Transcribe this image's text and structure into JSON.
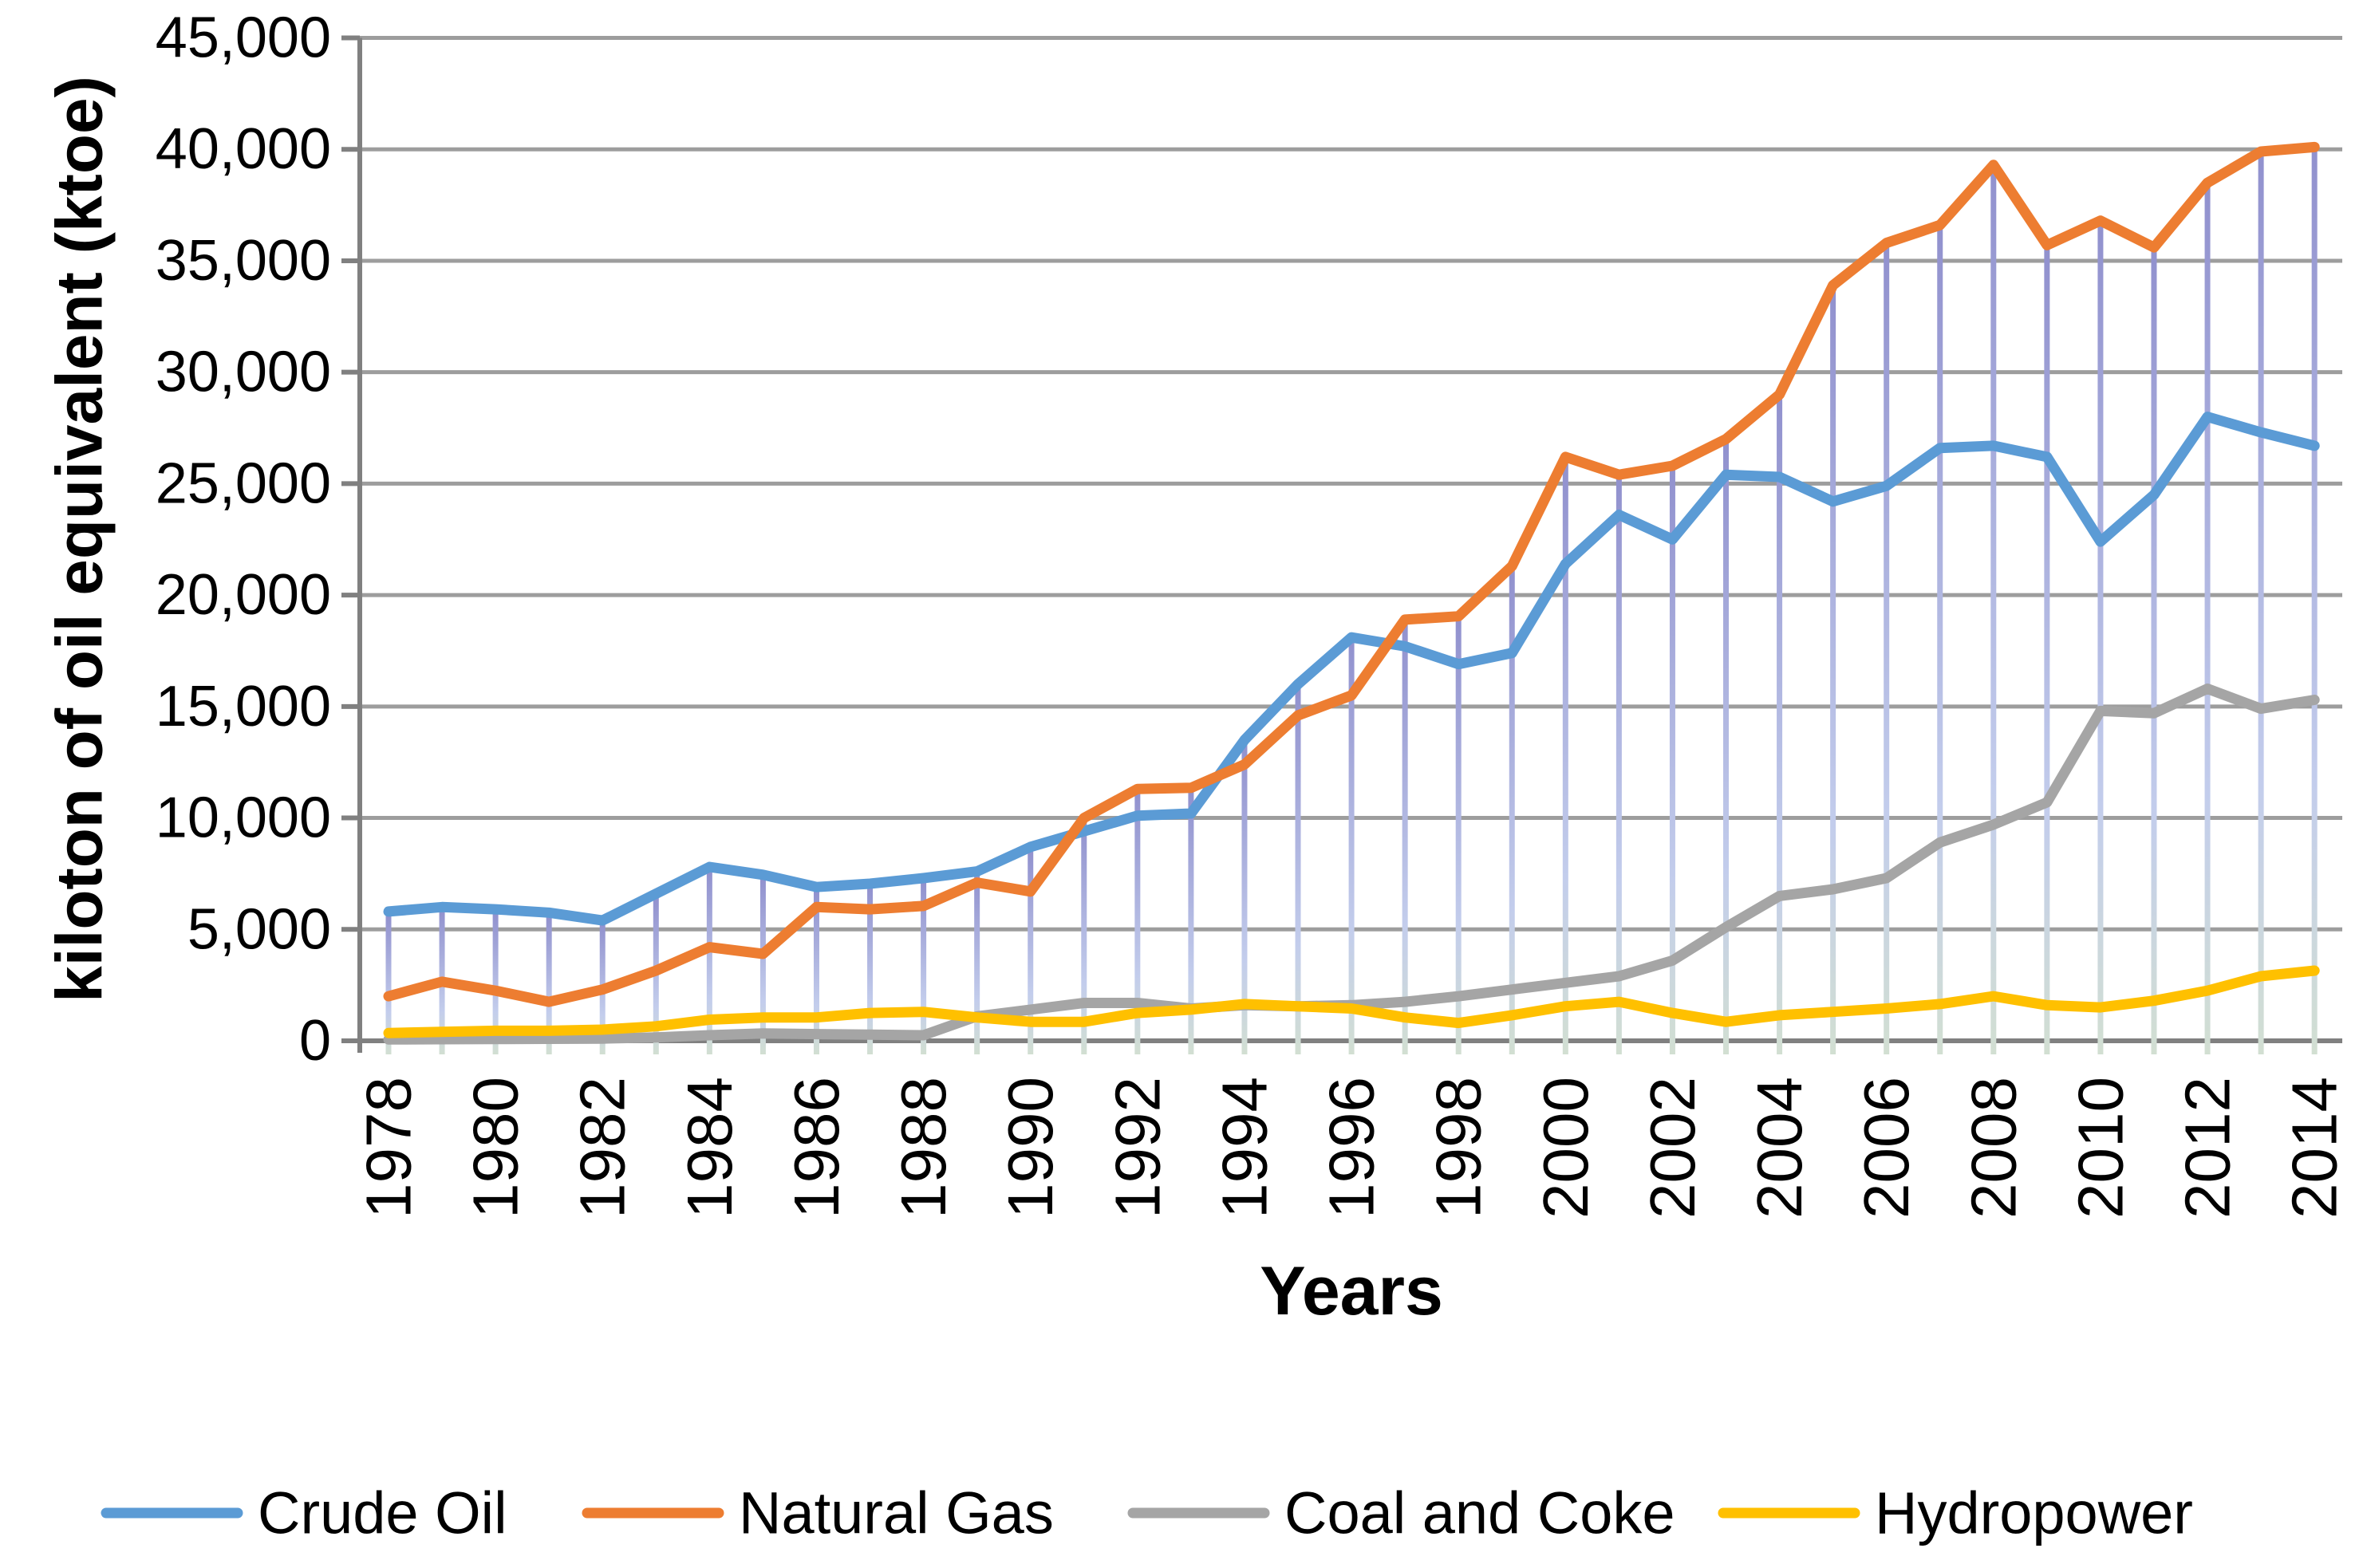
{
  "chart_data": {
    "type": "line",
    "title": "",
    "xlabel": "Years",
    "ylabel": "kiloton of oil equivalent (ktoe)",
    "x": [
      1978,
      1979,
      1980,
      1981,
      1982,
      1983,
      1984,
      1985,
      1986,
      1987,
      1988,
      1989,
      1990,
      1991,
      1992,
      1993,
      1994,
      1995,
      1996,
      1997,
      1998,
      1999,
      2000,
      2001,
      2002,
      2003,
      2004,
      2005,
      2006,
      2007,
      2008,
      2009,
      2010,
      2011,
      2012,
      2013,
      2014
    ],
    "x_tick_step": 2,
    "ylim": [
      0,
      45000
    ],
    "ytick_interval": 5000,
    "grid": true,
    "drop_lines": true,
    "legend_position": "bottom",
    "series": [
      {
        "name": "Crude Oil",
        "color": "#5B9BD5",
        "values": [
          5800,
          6000,
          5900,
          5750,
          5400,
          6600,
          7800,
          7450,
          6900,
          7050,
          7300,
          7600,
          8700,
          9400,
          10100,
          10200,
          13500,
          16000,
          18100,
          17700,
          16900,
          17400,
          21400,
          23600,
          22500,
          25400,
          25300,
          24200,
          24900,
          26600,
          26700,
          26200,
          22400,
          24500,
          28000,
          27300,
          26700
        ]
      },
      {
        "name": "Natural Gas",
        "color": "#ED7D31",
        "values": [
          2000,
          2650,
          2250,
          1750,
          2300,
          3150,
          4200,
          3900,
          6000,
          5900,
          6050,
          7100,
          6700,
          10000,
          11300,
          11350,
          12400,
          14600,
          15500,
          18900,
          19050,
          21300,
          26200,
          25400,
          25800,
          27000,
          29000,
          33900,
          35800,
          36600,
          39300,
          35700,
          36800,
          35600,
          38500,
          39900,
          40100
        ]
      },
      {
        "name": "Coal and Coke",
        "color": "#A5A5A5",
        "values": [
          60,
          70,
          80,
          90,
          100,
          150,
          250,
          330,
          300,
          280,
          250,
          1100,
          1400,
          1700,
          1700,
          1450,
          1600,
          1550,
          1600,
          1750,
          2000,
          2300,
          2600,
          2900,
          3600,
          5100,
          6500,
          6800,
          7300,
          8900,
          9700,
          10700,
          14800,
          14700,
          15800,
          14900,
          15300
        ]
      },
      {
        "name": "Hydropower",
        "color": "#FFC000",
        "values": [
          350,
          400,
          450,
          450,
          500,
          650,
          950,
          1050,
          1050,
          1250,
          1300,
          1050,
          850,
          850,
          1250,
          1400,
          1650,
          1550,
          1450,
          1050,
          800,
          1150,
          1550,
          1750,
          1250,
          850,
          1150,
          1300,
          1450,
          1650,
          2000,
          1600,
          1500,
          1800,
          2250,
          2900,
          3150
        ]
      }
    ],
    "style": {
      "gridline_color": "#9D9D9D",
      "axis_color": "#808080",
      "dropline_color_top": "#9191CE",
      "dropline_color_mid": "#C3CDEC",
      "dropline_color_bottom": "#D2DFD2",
      "series_stroke_width": 13,
      "background": "#FFFFFF"
    }
  }
}
